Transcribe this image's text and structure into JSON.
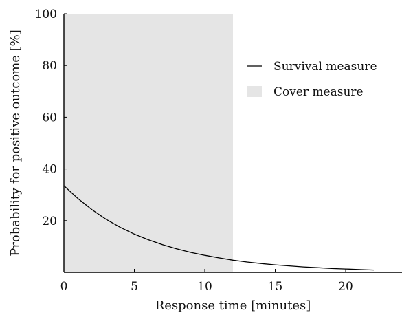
{
  "chart_data": {
    "type": "line",
    "xlabel": "Response time [minutes]",
    "ylabel": "Probability for positive outcome [%]",
    "xlim": [
      0,
      24
    ],
    "ylim": [
      0,
      100
    ],
    "xticks": [
      0,
      5,
      10,
      15,
      20
    ],
    "yticks": [
      20,
      40,
      60,
      80,
      100
    ],
    "grid": false,
    "legend_position": "right",
    "shaded_region": {
      "name": "Cover measure",
      "x_start": 0,
      "x_end": 12,
      "color": "#e5e5e5"
    },
    "series": [
      {
        "name": "Survival measure",
        "color": "#000000",
        "x": [
          0,
          1,
          2,
          3,
          4,
          5,
          6,
          7,
          8,
          9,
          10,
          11,
          12,
          13,
          14,
          15,
          16,
          17,
          18,
          19,
          20,
          21,
          22
        ],
        "y": [
          33.5,
          28.5,
          24.2,
          20.5,
          17.4,
          14.8,
          12.6,
          10.7,
          9.1,
          7.7,
          6.6,
          5.6,
          4.7,
          4.0,
          3.4,
          2.9,
          2.5,
          2.1,
          1.8,
          1.5,
          1.3,
          1.1,
          0.9
        ]
      }
    ],
    "legend": [
      {
        "label": "Survival measure",
        "kind": "line"
      },
      {
        "label": "Cover measure",
        "kind": "patch"
      }
    ]
  }
}
